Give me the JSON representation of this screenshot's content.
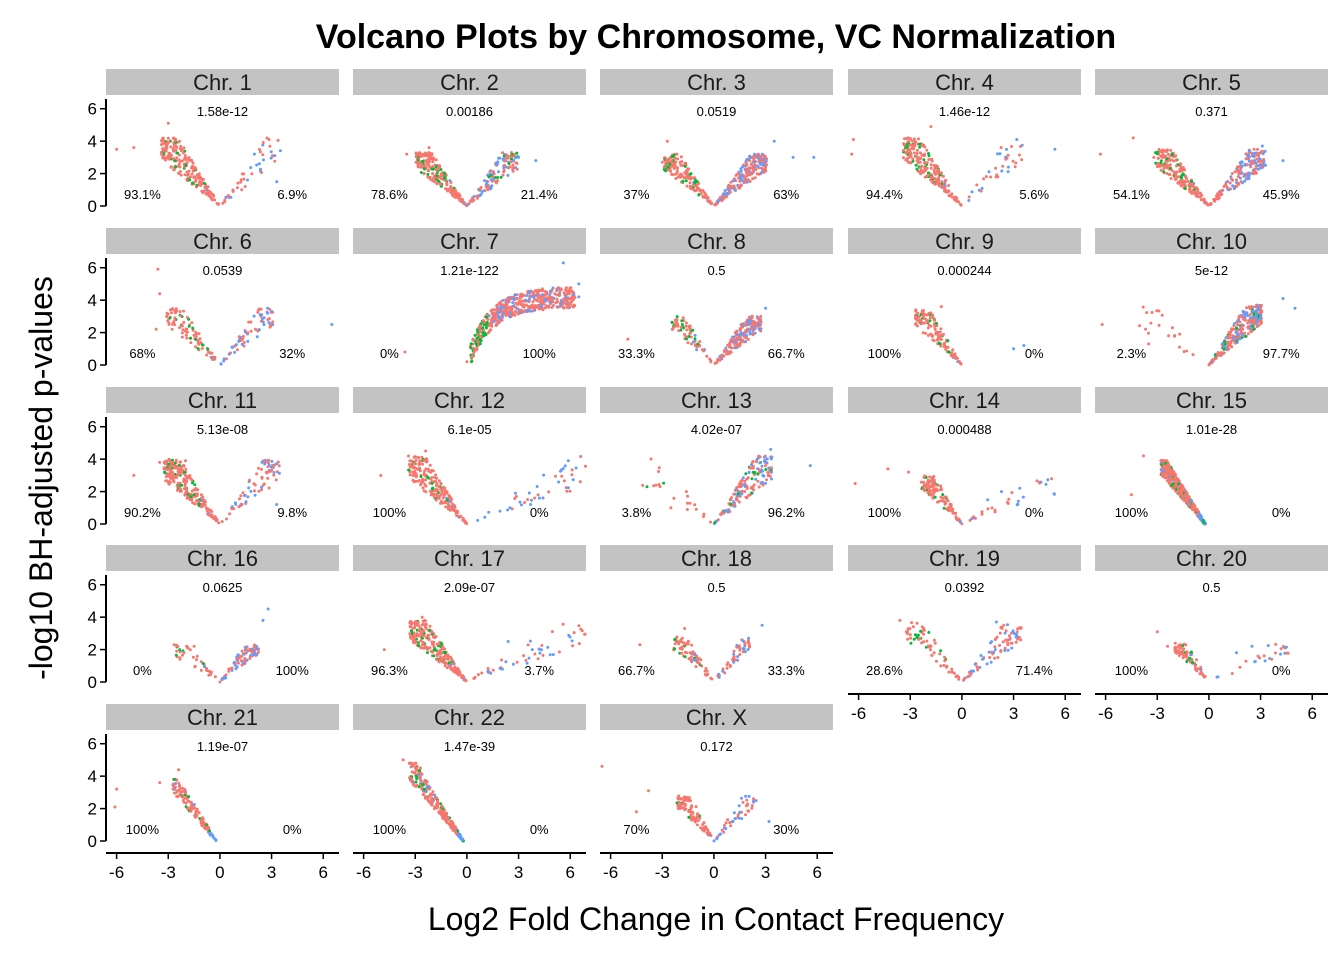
{
  "chart_data": {
    "type": "scatter",
    "title": "Volcano Plots by Chromosome, VC Normalization",
    "xlabel": "Log2 Fold Change in Contact Frequency",
    "ylabel": "-log10 BH-adjusted p-values",
    "xlim": [
      -6.5,
      6.8
    ],
    "ylim": [
      0,
      6.6
    ],
    "x_ticks": [
      -6,
      -3,
      0,
      3,
      6
    ],
    "y_ticks": [
      0,
      2,
      4,
      6
    ],
    "grid": false,
    "legend": "none",
    "colors": {
      "red": "#F8766D",
      "green": "#00BA38",
      "blue": "#619CFF",
      "strip": "#C3C3C3"
    },
    "panels": [
      {
        "label": "Chr. 1",
        "pvalue": "1.58e-12",
        "left_pct": "93.1%",
        "right_pct": "6.9%",
        "shape": "v",
        "peak": 4.2,
        "ls": 1.5,
        "rs": 1.4,
        "nl": 200,
        "nr": 45,
        "green": "left",
        "extraLeft": [
          [
            -6,
            3.5
          ],
          [
            -5,
            3.6
          ],
          [
            -3,
            5.1
          ]
        ],
        "extraRight": [
          [
            2,
            3.2
          ],
          [
            3.3,
            1.5
          ]
        ]
      },
      {
        "label": "Chr. 2",
        "pvalue": "0.00186",
        "left_pct": "78.6%",
        "right_pct": "21.4%",
        "shape": "v",
        "peak": 3.3,
        "ls": 1.4,
        "rs": 1.4,
        "nl": 200,
        "nr": 120,
        "green": "both",
        "extraLeft": [
          [
            -3.5,
            3.2
          ],
          [
            -2.2,
            3.6
          ]
        ],
        "extraRight": [
          [
            3,
            3
          ],
          [
            4,
            2.8
          ]
        ]
      },
      {
        "label": "Chr. 3",
        "pvalue": "0.0519",
        "left_pct": "37%",
        "right_pct": "63%",
        "shape": "v",
        "peak": 3.2,
        "ls": 1.4,
        "rs": 1.3,
        "nl": 150,
        "nr": 220,
        "green": "left",
        "extraLeft": [
          [
            -2.7,
            4
          ],
          [
            -3,
            2.7
          ]
        ],
        "extraRight": [
          [
            3.5,
            4
          ],
          [
            4.6,
            3
          ],
          [
            5.8,
            3
          ]
        ]
      },
      {
        "label": "Chr. 4",
        "pvalue": "1.46e-12",
        "left_pct": "94.4%",
        "right_pct": "5.6%",
        "shape": "v",
        "peak": 4.2,
        "ls": 1.5,
        "rs": 1.4,
        "nl": 220,
        "nr": 35,
        "green": "left",
        "extraLeft": [
          [
            -6.3,
            4.1
          ],
          [
            -6.4,
            3.2
          ],
          [
            -1.8,
            4.9
          ]
        ],
        "extraRight": [
          [
            2.7,
            2.4
          ],
          [
            5.4,
            3.5
          ]
        ]
      },
      {
        "label": "Chr. 5",
        "pvalue": "0.371",
        "left_pct": "54.1%",
        "right_pct": "45.9%",
        "shape": "v",
        "peak": 3.5,
        "ls": 1.4,
        "rs": 1.3,
        "nl": 200,
        "nr": 170,
        "green": "left",
        "extraLeft": [
          [
            -6.3,
            3.2
          ],
          [
            -4.4,
            4.2
          ],
          [
            -3.2,
            3
          ]
        ],
        "extraRight": [
          [
            4.3,
            2.8
          ],
          [
            3.1,
            3.7
          ]
        ]
      },
      {
        "label": "Chr. 6",
        "pvalue": "0.0539",
        "left_pct": "68%",
        "right_pct": "32%",
        "shape": "v",
        "peak": 3.5,
        "ls": 1.4,
        "rs": 1.4,
        "nl": 90,
        "nr": 70,
        "green": "left",
        "extraLeft": [
          [
            -3.6,
            5.9
          ],
          [
            -3.5,
            4.4
          ],
          [
            -3.7,
            2.2
          ]
        ],
        "extraRight": [
          [
            3,
            3.3
          ],
          [
            6.5,
            2.5
          ]
        ]
      },
      {
        "label": "Chr. 7",
        "pvalue": "1.21e-122",
        "left_pct": "0%",
        "right_pct": "100%",
        "shape": "sat",
        "peak": 4.2,
        "nl": 500,
        "green": "left",
        "extraLeft": [
          [
            -3.6,
            0.8
          ],
          [
            0,
            0.2
          ]
        ],
        "extraRight": [
          [
            5.6,
            6.3
          ],
          [
            6.5,
            4.2
          ],
          [
            6.5,
            5
          ]
        ]
      },
      {
        "label": "Chr. 8",
        "pvalue": "0.5",
        "left_pct": "33.3%",
        "right_pct": "66.7%",
        "shape": "v",
        "peak": 3,
        "ls": 1.6,
        "rs": 1.4,
        "nl": 70,
        "nr": 180,
        "green": "left",
        "extraLeft": [
          [
            -5,
            1.6
          ],
          [
            -2.2,
            2.4
          ]
        ],
        "extraRight": [
          [
            3,
            3.5
          ]
        ]
      },
      {
        "label": "Chr. 9",
        "pvalue": "0.000244",
        "left_pct": "100%",
        "right_pct": "0%",
        "shape": "left",
        "peak": 3.4,
        "ls": 1.6,
        "nl": 120,
        "green": "left",
        "extraLeft": [
          [
            -1.2,
            3.6
          ],
          [
            -1.8,
            2.4
          ]
        ],
        "extraRight": [
          [
            3,
            1
          ],
          [
            3.6,
            1.2
          ]
        ]
      },
      {
        "label": "Chr. 10",
        "pvalue": "5e-12",
        "left_pct": "2.3%",
        "right_pct": "97.7%",
        "shape": "right",
        "peak": 3.7,
        "rs": 1.5,
        "nr": 260,
        "green": "right",
        "extraLeft": [
          [
            -6.2,
            2.5
          ],
          [
            -3.5,
            1.3
          ]
        ],
        "extraRight": [
          [
            4.3,
            4.1
          ],
          [
            5,
            3.5
          ]
        ]
      },
      {
        "label": "Chr. 11",
        "pvalue": "5.13e-08",
        "left_pct": "90.2%",
        "right_pct": "9.8%",
        "shape": "v",
        "peak": 4,
        "ls": 1.5,
        "rs": 1.4,
        "nl": 220,
        "nr": 70,
        "green": "left",
        "extraLeft": [
          [
            -5,
            3
          ],
          [
            -3.5,
            3.8
          ],
          [
            -2,
            3.9
          ]
        ],
        "extraRight": [
          [
            2.6,
            3.7
          ],
          [
            3.3,
            1.2
          ]
        ]
      },
      {
        "label": "Chr. 12",
        "pvalue": "6.1e-05",
        "left_pct": "100%",
        "right_pct": "0%",
        "shape": "left",
        "peak": 4.2,
        "ls": 1.5,
        "nl": 220,
        "nr": 50,
        "green": "left",
        "extraLeft": [
          [
            -5,
            3
          ],
          [
            -2.4,
            4.5
          ]
        ],
        "extraRight": [
          [
            2.5,
            1
          ],
          [
            3.7,
            1.2
          ]
        ]
      },
      {
        "label": "Chr. 13",
        "pvalue": "4.02e-07",
        "left_pct": "3.8%",
        "right_pct": "96.2%",
        "shape": "right",
        "peak": 4.2,
        "rs": 1.5,
        "nr": 160,
        "green": "both",
        "extraLeft": [
          [
            -2.5,
            1
          ],
          [
            -1.6,
            2
          ]
        ],
        "extraRight": [
          [
            3.3,
            4.6
          ],
          [
            5.6,
            3.6
          ]
        ]
      },
      {
        "label": "Chr. 14",
        "pvalue": "0.000488",
        "left_pct": "100%",
        "right_pct": "0%",
        "shape": "left",
        "peak": 3,
        "ls": 1.7,
        "nl": 120,
        "nr": 30,
        "green": "left",
        "extraLeft": [
          [
            -6.2,
            2.5
          ],
          [
            -4.3,
            3.4
          ],
          [
            -3.1,
            3.2
          ]
        ],
        "extraRight": [
          [
            1.5,
            1.5
          ],
          [
            2.3,
            2
          ]
        ]
      },
      {
        "label": "Chr. 15",
        "pvalue": "1.01e-28",
        "left_pct": "100%",
        "right_pct": "0%",
        "shape": "line",
        "peak": 3.9,
        "nl": 450,
        "green": "left",
        "extraLeft": [
          [
            -3.8,
            4.2
          ],
          [
            -4.5,
            1.8
          ]
        ],
        "extraRight": []
      },
      {
        "label": "Chr. 16",
        "pvalue": "0.0625",
        "left_pct": "0%",
        "right_pct": "100%",
        "shape": "v",
        "peak": 2.3,
        "ls": 1.1,
        "rs": 1.4,
        "nl": 40,
        "nr": 80,
        "green": "left",
        "extraLeft": [
          [
            -1.5,
            2.2
          ]
        ],
        "extraRight": [
          [
            2.8,
            4.5
          ],
          [
            2.5,
            3.8
          ]
        ]
      },
      {
        "label": "Chr. 17",
        "pvalue": "2.09e-07",
        "left_pct": "96.3%",
        "right_pct": "3.7%",
        "shape": "left",
        "peak": 3.8,
        "ls": 1.4,
        "nl": 240,
        "nr": 50,
        "green": "left",
        "extraLeft": [
          [
            -4.8,
            2
          ],
          [
            -2.6,
            4
          ]
        ],
        "extraRight": [
          [
            2.4,
            2.5
          ],
          [
            3.8,
            2
          ]
        ]
      },
      {
        "label": "Chr. 18",
        "pvalue": "0.5",
        "left_pct": "66.7%",
        "right_pct": "33.3%",
        "shape": "v",
        "peak": 2.8,
        "ls": 1.6,
        "rs": 1.6,
        "nl": 70,
        "nr": 50,
        "green": "left",
        "extraLeft": [
          [
            -4.3,
            2.3
          ],
          [
            -1.7,
            3.3
          ]
        ],
        "extraRight": [
          [
            2.8,
            3.5
          ]
        ]
      },
      {
        "label": "Chr. 19",
        "pvalue": "0.0392",
        "left_pct": "28.6%",
        "right_pct": "71.4%",
        "shape": "v",
        "peak": 3.7,
        "ls": 1.4,
        "rs": 1.3,
        "nl": 60,
        "nr": 80,
        "green": "left",
        "extraLeft": [
          [
            -3.6,
            3.8
          ],
          [
            -2.3,
            3.4
          ]
        ],
        "extraRight": [
          [
            2,
            3.7
          ]
        ]
      },
      {
        "label": "Chr. 20",
        "pvalue": "0.5",
        "left_pct": "100%",
        "right_pct": "0%",
        "shape": "left",
        "peak": 2.4,
        "ls": 1.7,
        "nl": 80,
        "nr": 25,
        "green": "left",
        "extraLeft": [
          [
            -3,
            3.1
          ],
          [
            -2.4,
            2.2
          ]
        ],
        "extraRight": [
          [
            2.5,
            2.2
          ],
          [
            1.6,
            1.8
          ]
        ]
      },
      {
        "label": "Chr. 21",
        "pvalue": "1.19e-07",
        "left_pct": "100%",
        "right_pct": "0%",
        "shape": "line",
        "peak": 3.8,
        "nl": 120,
        "green": "left",
        "extraLeft": [
          [
            -6,
            3.2
          ],
          [
            -6.1,
            2.1
          ],
          [
            -2.4,
            4.4
          ],
          [
            -3.5,
            3.6
          ]
        ],
        "extraRight": []
      },
      {
        "label": "Chr. 22",
        "pvalue": "1.47e-39",
        "left_pct": "100%",
        "right_pct": "0%",
        "shape": "line",
        "peak": 4.8,
        "nl": 260,
        "green": "left",
        "extraLeft": [
          [
            -3.7,
            5
          ],
          [
            -2.7,
            4.5
          ]
        ],
        "extraRight": []
      },
      {
        "label": "Chr. X",
        "pvalue": "0.172",
        "left_pct": "70%",
        "right_pct": "30%",
        "shape": "v",
        "peak": 2.8,
        "ls": 1.8,
        "rs": 1.5,
        "nl": 90,
        "nr": 45,
        "green": "left",
        "extraLeft": [
          [
            -6.5,
            4.6
          ],
          [
            -3.8,
            3.1
          ],
          [
            -4.5,
            1.8
          ]
        ],
        "extraRight": [
          [
            2.3,
            2.4
          ],
          [
            3.2,
            1.2
          ]
        ]
      }
    ]
  }
}
